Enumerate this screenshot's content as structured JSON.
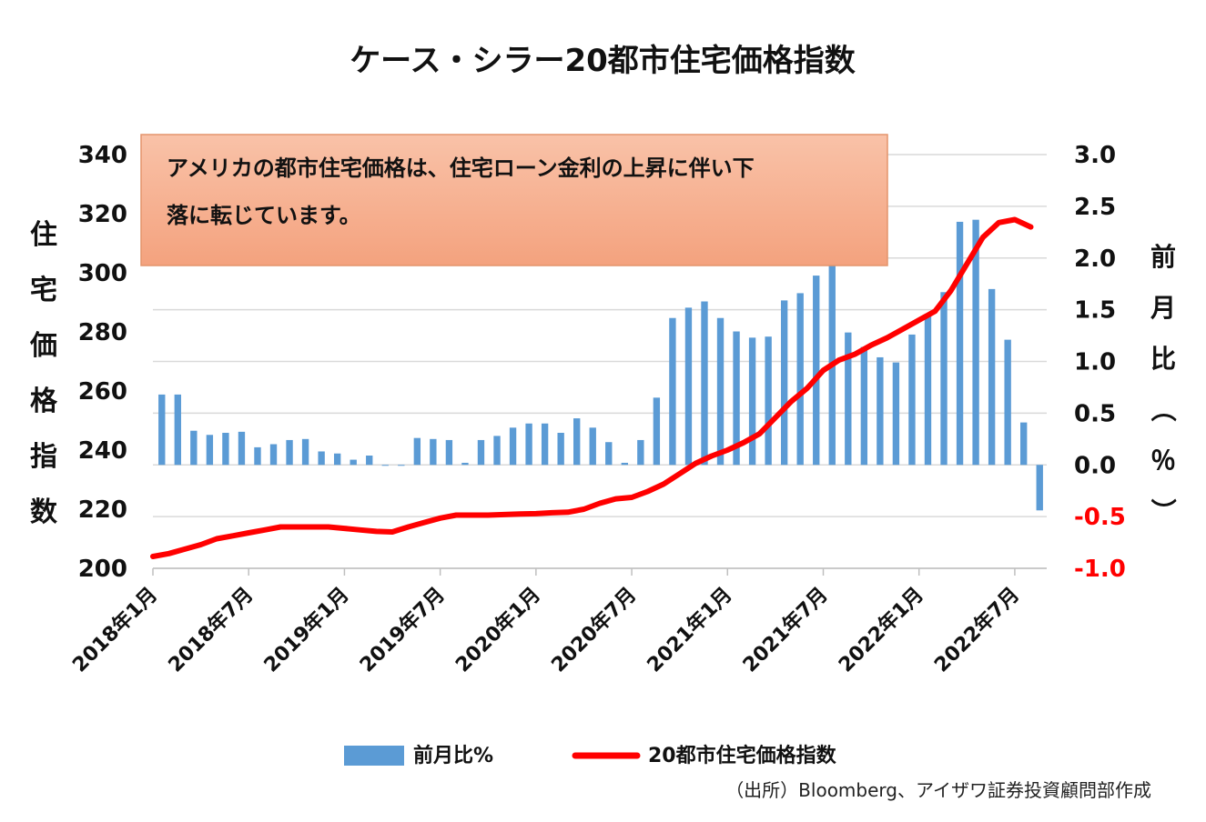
{
  "chart_data": {
    "type": "bar+line",
    "title": "ケース・シラー20都市住宅価格指数",
    "annotation": "アメリカの都市住宅価格は、住宅ローン金利の上昇に伴い下落に転じています。",
    "source": "（出所）Bloomberg、アイザワ証券投資顧問部作成",
    "y_left_label": "住宅価格指数",
    "y_right_label": "前月比（％）",
    "y_left_ticks": [
      "200",
      "220",
      "240",
      "260",
      "280",
      "300",
      "320",
      "340"
    ],
    "y_right_ticks": [
      "-1.0",
      "-0.5",
      "0.0",
      "0.5",
      "1.0",
      "1.5",
      "2.0",
      "2.5",
      "3.0"
    ],
    "y_left_range": [
      200,
      340
    ],
    "y_right_range": [
      -1.0,
      3.0
    ],
    "x_tick_labels": [
      "2018年1月",
      "2018年7月",
      "2019年1月",
      "2019年7月",
      "2020年1月",
      "2020年7月",
      "2021年1月",
      "2021年7月",
      "2022年1月",
      "2022年7月"
    ],
    "x_tick_index": [
      0,
      6,
      12,
      18,
      24,
      30,
      36,
      42,
      48,
      54
    ],
    "grid": true,
    "legend_position": "bottom",
    "series": [
      {
        "name": "前月比%",
        "type": "bar",
        "axis": "right",
        "color": "#5B9BD5",
        "values": [
          0.68,
          0.68,
          0.33,
          0.29,
          0.31,
          0.32,
          0.17,
          0.2,
          0.24,
          0.25,
          0.13,
          0.11,
          0.05,
          0.09,
          0.0,
          0.0,
          0.26,
          0.25,
          0.24,
          0.02,
          0.24,
          0.28,
          0.36,
          0.4,
          0.4,
          0.31,
          0.45,
          0.36,
          0.22,
          0.02,
          0.24,
          0.65,
          1.42,
          1.52,
          1.58,
          1.42,
          1.29,
          1.23,
          1.24,
          1.59,
          1.66,
          1.83,
          2.05,
          1.28,
          1.14,
          1.04,
          0.99,
          1.26,
          1.45,
          1.67,
          2.35,
          2.37,
          1.7,
          1.21,
          0.41,
          -0.44
        ]
      },
      {
        "name": "20都市住宅価格指数",
        "type": "line",
        "axis": "left",
        "color": "#FF0000",
        "values": [
          204.0,
          205.0,
          206.5,
          208.0,
          210.0,
          211.0,
          212.0,
          213.0,
          214.0,
          214.0,
          214.0,
          214.0,
          213.5,
          213.0,
          212.5,
          212.3,
          214.0,
          215.5,
          217.0,
          218.0,
          218.0,
          218.0,
          218.2,
          218.4,
          218.5,
          218.8,
          219.0,
          220.0,
          222.0,
          223.5,
          224.0,
          226.0,
          228.5,
          232.0,
          235.5,
          238.0,
          240.0,
          242.5,
          245.5,
          251.0,
          256.5,
          261.0,
          267.0,
          270.5,
          272.5,
          275.5,
          278.0,
          281.0,
          284.0,
          287.0,
          294.0,
          303.0,
          312.0,
          317.0,
          318.0,
          315.5
        ]
      }
    ]
  }
}
